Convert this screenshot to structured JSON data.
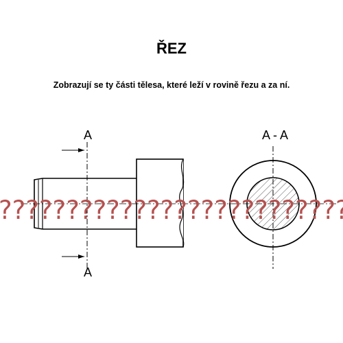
{
  "heading": {
    "title": "ŘEZ",
    "subtitle": "Zobrazují se ty části tělesa, které leží v rovině řezu a za ní."
  },
  "diagram": {
    "cut_label_top": "A",
    "cut_label_bottom": "A",
    "section_label": "A - A"
  },
  "overlay": {
    "text": "????????????????????????????",
    "color": "#b5514f"
  }
}
